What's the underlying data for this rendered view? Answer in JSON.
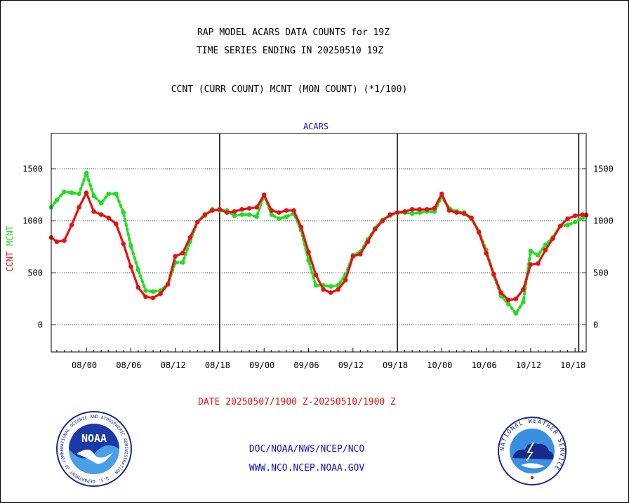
{
  "header": {
    "line1": "RAP MODEL ACARS DATA COUNTS for 19Z",
    "line2": "TIME SERIES ENDING IN 20250510 19Z",
    "line3": "CCNT (CURR COUNT) MCNT (MON COUNT) (*1/100)"
  },
  "footer": {
    "date_range": "DATE 20250507/1900 Z-20250510/1900 Z",
    "link1": "DOC/NOAA/NWS/NCEP/NCO",
    "link2": "WWW.NCO.NCEP.NOAA.GOV"
  },
  "logos": {
    "noaa": {
      "text": "NOAA",
      "ring_text": "NATIONAL OCEANIC AND ATMOSPHERIC ADMINISTRATION · U.S. DEPARTMENT OF COMMERCE"
    },
    "nws": {
      "ring_text": "NATIONAL WEATHER SERVICE"
    }
  },
  "colors": {
    "ccnt": "#e81010",
    "mcnt": "#22dd22",
    "title": "#1010cc",
    "date": "#e81010",
    "footer_links": "#1010cc"
  },
  "chart_data": {
    "type": "line",
    "title": "ACARS",
    "ylabel_parts": [
      "CCNT",
      "MCNT"
    ],
    "y_ticks": [
      0,
      500,
      1000,
      1500
    ],
    "ylim": [
      -260,
      1840
    ],
    "x_ticks": [
      "08/00",
      "08/06",
      "08/12",
      "08/18",
      "09/00",
      "09/06",
      "09/12",
      "09/18",
      "10/00",
      "10/06",
      "10/12",
      "10/18"
    ],
    "x_hours_range": [
      -4.75,
      67.5
    ],
    "day_boundaries_hours": [
      18,
      42,
      66.5
    ],
    "grid": "horizontal",
    "x": [
      -4.75,
      -4,
      -3,
      -2,
      -1,
      0,
      1,
      2,
      3,
      4,
      5,
      6,
      7,
      8,
      9,
      10,
      11,
      12,
      13,
      14,
      15,
      16,
      17,
      18,
      19,
      20,
      21,
      22,
      23,
      24,
      25,
      26,
      27,
      28,
      29,
      30,
      31,
      32,
      33,
      34,
      35,
      36,
      37,
      38,
      39,
      40,
      41,
      42,
      43,
      44,
      45,
      46,
      47,
      48,
      49,
      50,
      51,
      52,
      53,
      54,
      55,
      56,
      57,
      58,
      59,
      60,
      61,
      62,
      63,
      64,
      65,
      66,
      67,
      67.5
    ],
    "series": [
      {
        "name": "CCNT",
        "style": "solid",
        "values": [
          840,
          800,
          810,
          960,
          1130,
          1270,
          1090,
          1060,
          1030,
          970,
          780,
          560,
          360,
          270,
          260,
          300,
          390,
          660,
          690,
          840,
          990,
          1060,
          1100,
          1110,
          1080,
          1090,
          1110,
          1120,
          1130,
          1250,
          1100,
          1080,
          1100,
          1100,
          940,
          700,
          480,
          340,
          310,
          340,
          430,
          660,
          680,
          800,
          920,
          1000,
          1060,
          1080,
          1090,
          1110,
          1110,
          1110,
          1120,
          1260,
          1100,
          1080,
          1070,
          1030,
          890,
          690,
          490,
          310,
          240,
          250,
          340,
          580,
          590,
          720,
          830,
          950,
          1020,
          1050,
          1060,
          1055
        ]
      },
      {
        "name": "MCNT",
        "style": "dotted",
        "values": [
          1130,
          1200,
          1280,
          1270,
          1260,
          1460,
          1240,
          1170,
          1260,
          1260,
          1080,
          760,
          530,
          330,
          320,
          330,
          390,
          600,
          600,
          800,
          990,
          1050,
          1110,
          1100,
          1100,
          1050,
          1060,
          1060,
          1040,
          1250,
          1060,
          1020,
          1040,
          1070,
          910,
          620,
          380,
          380,
          370,
          380,
          480,
          670,
          700,
          820,
          930,
          1010,
          1050,
          1080,
          1080,
          1070,
          1080,
          1090,
          1090,
          1230,
          1120,
          1090,
          1080,
          1020,
          900,
          720,
          480,
          280,
          200,
          110,
          220,
          710,
          670,
          770,
          840,
          950,
          960,
          990,
          1030,
          1060
        ]
      }
    ]
  }
}
